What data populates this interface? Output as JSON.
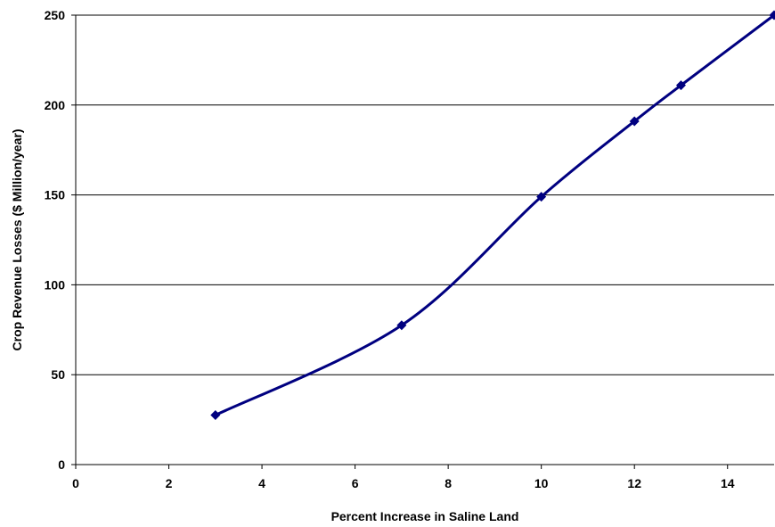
{
  "chart_data": {
    "type": "line",
    "title": "",
    "xlabel": "Percent Increase in Saline Land",
    "ylabel": "Crop Revenue Losses ($ Million/year)",
    "xlim": [
      0,
      15
    ],
    "ylim": [
      0,
      250
    ],
    "xticks": [
      0,
      2,
      4,
      6,
      8,
      10,
      12,
      14
    ],
    "yticks": [
      0,
      50,
      100,
      150,
      200,
      250
    ],
    "grid": "horizontal",
    "series": [
      {
        "color": "#000080",
        "marker": "diamond",
        "smooth": true,
        "x": [
          3,
          7,
          10,
          12,
          13,
          15
        ],
        "y": [
          27.5,
          77.5,
          149,
          191,
          211,
          250
        ]
      }
    ]
  }
}
